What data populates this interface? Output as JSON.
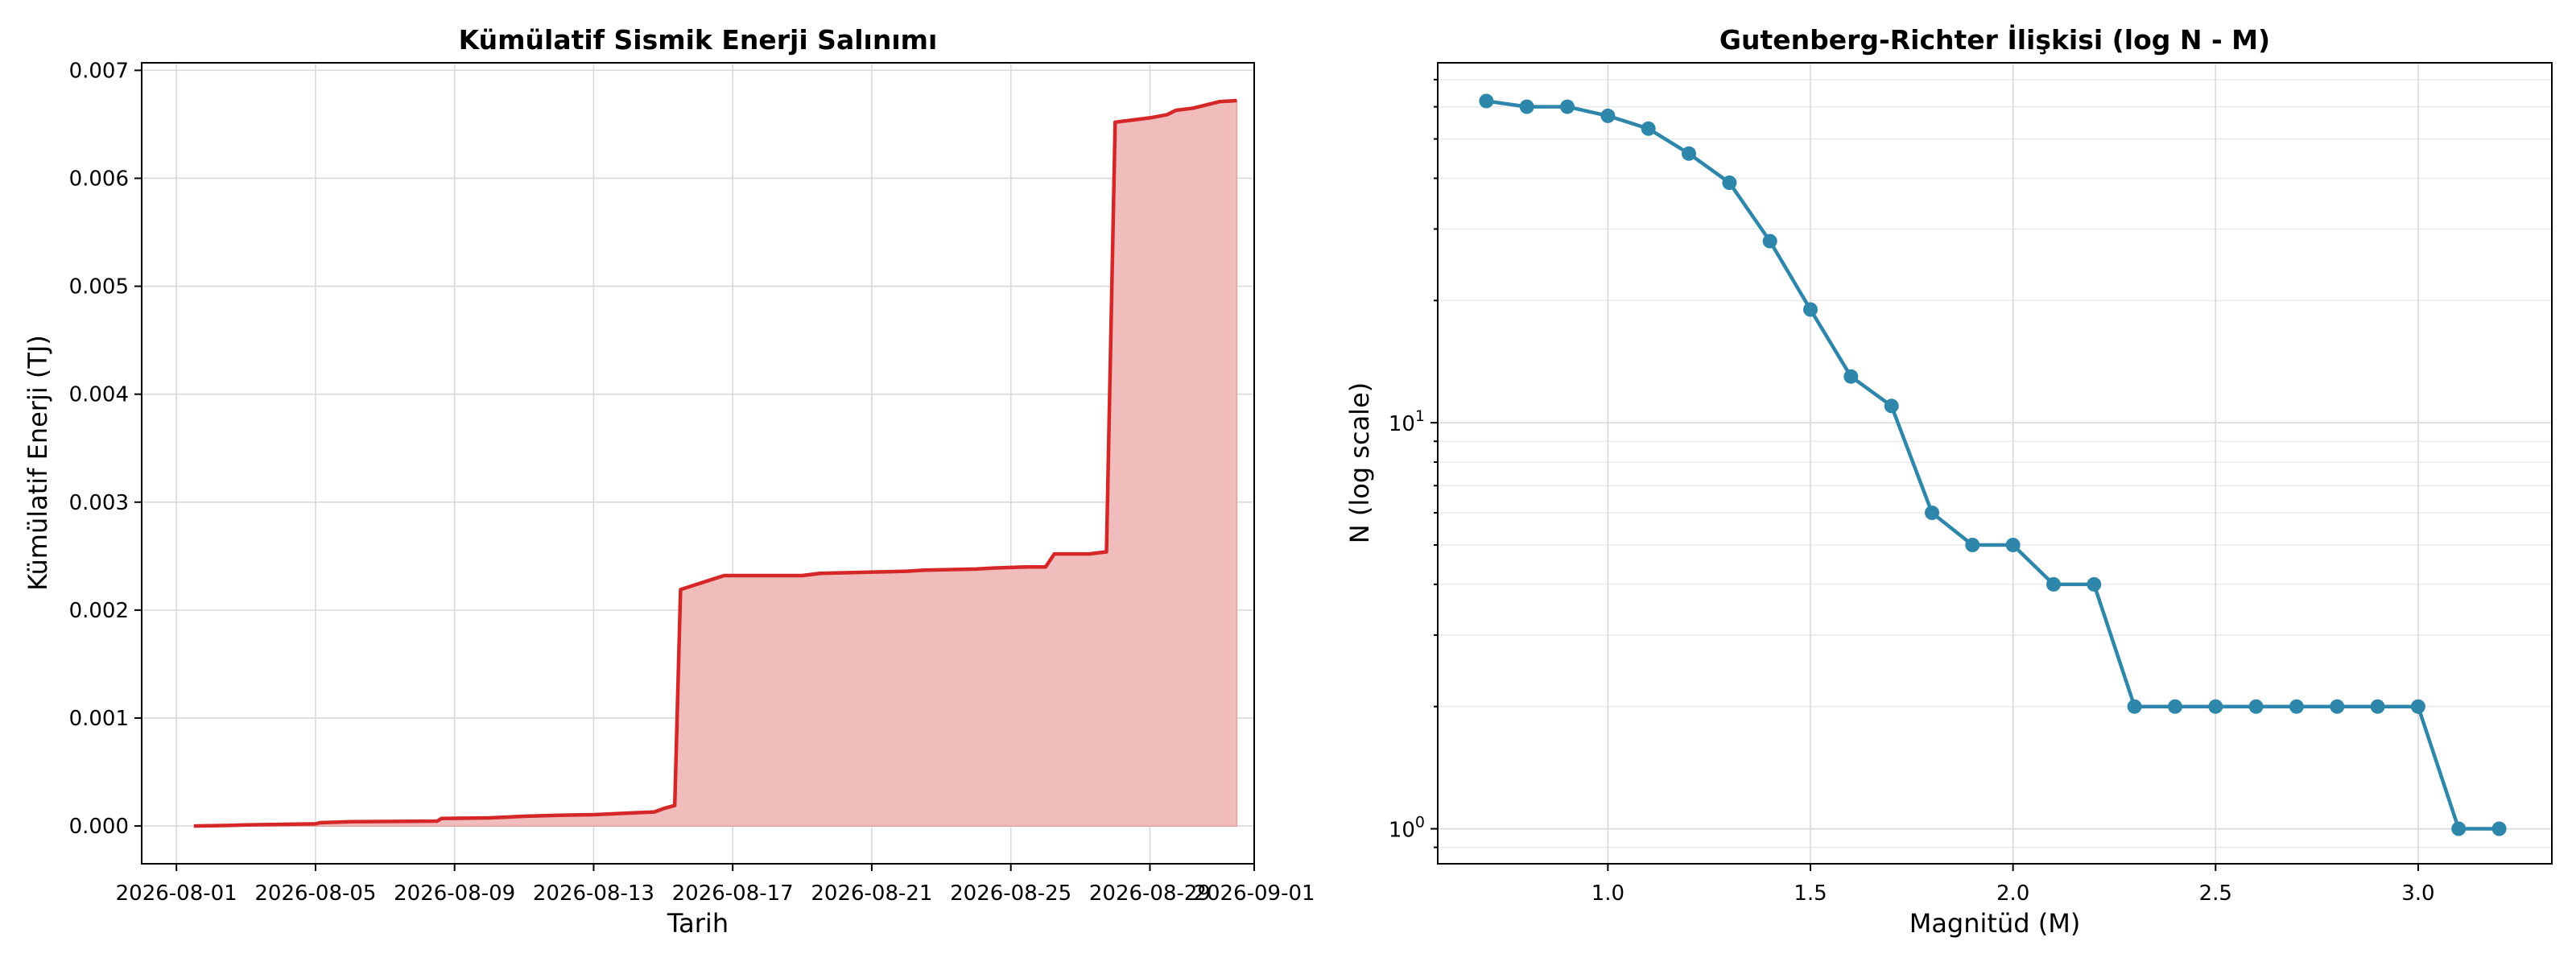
{
  "chart_data": [
    {
      "type": "area",
      "title": "Kümülatif Sismik Enerji Salınımı",
      "xlabel": "Tarih",
      "ylabel": "Kümülatif Enerji (TJ)",
      "x_type": "date",
      "xlim": [
        "2026-07-31",
        "2026-09-01"
      ],
      "ylim": [
        -0.00035,
        0.00707
      ],
      "x_ticks": [
        "2026-08-01",
        "2026-08-05",
        "2026-08-09",
        "2026-08-13",
        "2026-08-17",
        "2026-08-21",
        "2026-08-25",
        "2026-08-29",
        "2026-09-01"
      ],
      "y_ticks": [
        "0.000",
        "0.001",
        "0.002",
        "0.003",
        "0.004",
        "0.005",
        "0.006",
        "0.007"
      ],
      "grid": true,
      "line_color": "#d62728",
      "fill_color": "#f0bcbc",
      "points": [
        {
          "x": "2026-08-01T12:00",
          "y": 0.0
        },
        {
          "x": "2026-08-02T12:00",
          "y": 5e-06
        },
        {
          "x": "2026-08-03T00:00",
          "y": 1e-05
        },
        {
          "x": "2026-08-05T00:00",
          "y": 2e-05
        },
        {
          "x": "2026-08-05T03:00",
          "y": 3e-05
        },
        {
          "x": "2026-08-06T00:00",
          "y": 4e-05
        },
        {
          "x": "2026-08-08T12:00",
          "y": 4.5e-05
        },
        {
          "x": "2026-08-08T15:00",
          "y": 7e-05
        },
        {
          "x": "2026-08-10T00:00",
          "y": 7.5e-05
        },
        {
          "x": "2026-08-11T00:00",
          "y": 9e-05
        },
        {
          "x": "2026-08-12T00:00",
          "y": 0.0001
        },
        {
          "x": "2026-08-13T00:00",
          "y": 0.000105
        },
        {
          "x": "2026-08-14T18:00",
          "y": 0.00013
        },
        {
          "x": "2026-08-15T00:00",
          "y": 0.00016
        },
        {
          "x": "2026-08-15T08:00",
          "y": 0.00019
        },
        {
          "x": "2026-08-15T12:00",
          "y": 0.00219
        },
        {
          "x": "2026-08-16T18:00",
          "y": 0.00232
        },
        {
          "x": "2026-08-19T00:00",
          "y": 0.00232
        },
        {
          "x": "2026-08-19T12:00",
          "y": 0.00234
        },
        {
          "x": "2026-08-22T00:00",
          "y": 0.00236
        },
        {
          "x": "2026-08-22T12:00",
          "y": 0.00237
        },
        {
          "x": "2026-08-24T00:00",
          "y": 0.00238
        },
        {
          "x": "2026-08-24T12:00",
          "y": 0.00239
        },
        {
          "x": "2026-08-25T12:00",
          "y": 0.0024
        },
        {
          "x": "2026-08-26T00:00",
          "y": 0.0024
        },
        {
          "x": "2026-08-26T06:00",
          "y": 0.00252
        },
        {
          "x": "2026-08-27T06:00",
          "y": 0.00252
        },
        {
          "x": "2026-08-27T18:00",
          "y": 0.00254
        },
        {
          "x": "2026-08-28T00:00",
          "y": 0.00652
        },
        {
          "x": "2026-08-28T12:00",
          "y": 0.00654
        },
        {
          "x": "2026-08-29T00:00",
          "y": 0.00656
        },
        {
          "x": "2026-08-29T12:00",
          "y": 0.00659
        },
        {
          "x": "2026-08-29T18:00",
          "y": 0.00663
        },
        {
          "x": "2026-08-30T06:00",
          "y": 0.00665
        },
        {
          "x": "2026-08-31T00:00",
          "y": 0.00671
        },
        {
          "x": "2026-08-31T12:00",
          "y": 0.00672
        }
      ]
    },
    {
      "type": "line",
      "title": "Gutenberg-Richter İlişkisi (log N - M)",
      "xlabel": "Magnitüd (M)",
      "ylabel": "N (log scale)",
      "y_scale": "log",
      "xlim": [
        0.58,
        3.33
      ],
      "ylim": [
        0.82,
        77
      ],
      "x_ticks": [
        "1.0",
        "1.5",
        "2.0",
        "2.5",
        "3.0"
      ],
      "y_ticks": [
        {
          "value": 1,
          "base": "10",
          "exp": "0"
        },
        {
          "value": 10,
          "base": "10",
          "exp": "1"
        }
      ],
      "grid": true,
      "line_color": "#2e86ab",
      "x": [
        0.7,
        0.8,
        0.9,
        1.0,
        1.1,
        1.2,
        1.3,
        1.4,
        1.5,
        1.6,
        1.7,
        1.8,
        1.9,
        2.0,
        2.1,
        2.2,
        2.3,
        2.4,
        2.5,
        2.6,
        2.7,
        2.8,
        2.9,
        3.0,
        3.1,
        3.2
      ],
      "y": [
        62,
        60,
        60,
        57,
        53,
        46,
        39,
        28,
        19,
        13,
        11,
        6,
        5,
        5,
        4,
        4,
        2,
        2,
        2,
        2,
        2,
        2,
        2,
        2,
        1,
        1
      ]
    }
  ]
}
